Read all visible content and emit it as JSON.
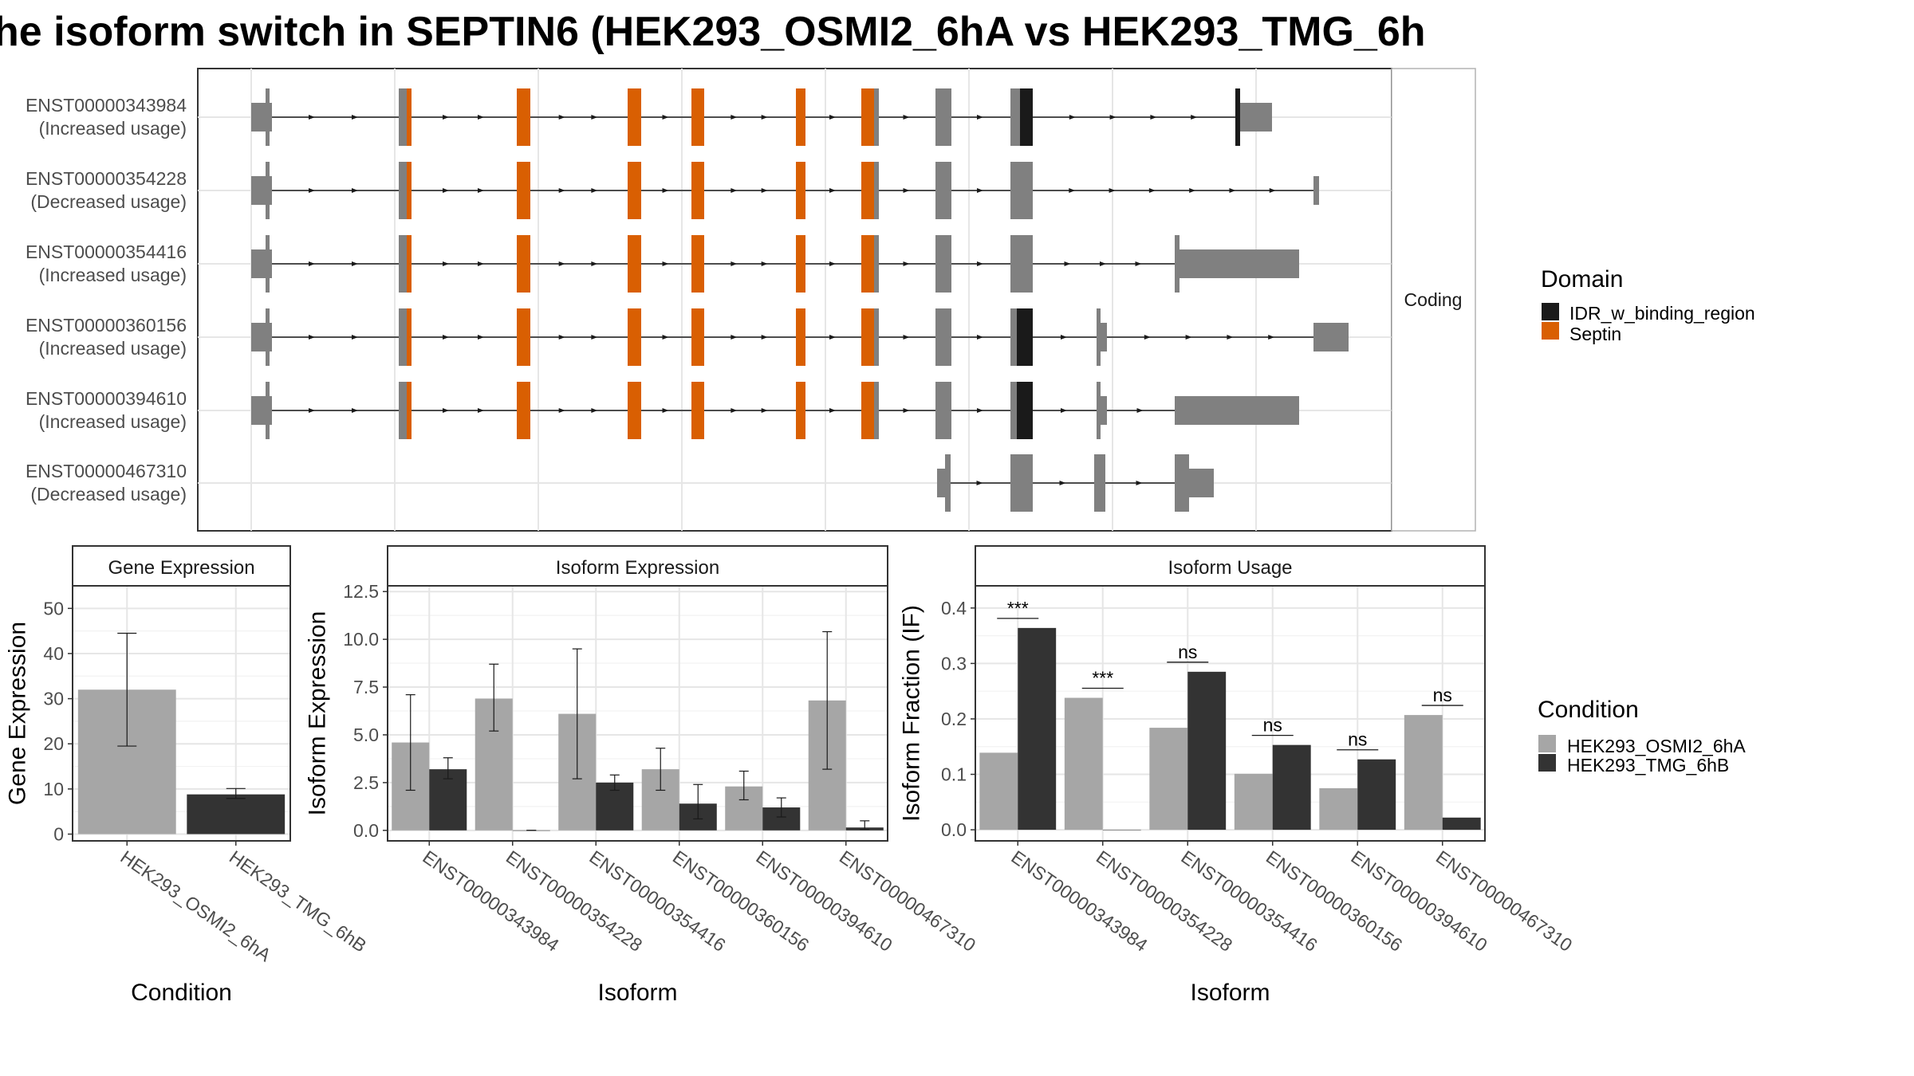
{
  "title": "he isoform switch in SEPTIN6 (HEK293_OSMI2_6hA vs HEK293_TMG_6h",
  "colors": {
    "exon": "#808080",
    "septin": "#D95F02",
    "idr": "#1a1a1a",
    "cond1": "#a6a6a6",
    "cond2": "#333333",
    "grid": "#e6e6e6",
    "strip_bg": "#ffffff",
    "panel_border": "#333333"
  },
  "transcript_panel": {
    "strip_label": "Coding",
    "transcripts": [
      {
        "id": "ENST00000343984",
        "usage": "(Increased usage)"
      },
      {
        "id": "ENST00000354228",
        "usage": "(Decreased usage)"
      },
      {
        "id": "ENST00000354416",
        "usage": "(Increased usage)"
      },
      {
        "id": "ENST00000360156",
        "usage": "(Increased usage)"
      },
      {
        "id": "ENST00000394610",
        "usage": "(Increased usage)"
      },
      {
        "id": "ENST00000467310",
        "usage": "(Decreased usage)"
      }
    ]
  },
  "domain_legend": {
    "title": "Domain",
    "items": [
      {
        "label": "IDR_w_binding_region",
        "color": "#1a1a1a"
      },
      {
        "label": "Septin",
        "color": "#D95F02"
      }
    ]
  },
  "condition_legend": {
    "title": "Condition",
    "items": [
      {
        "label": "HEK293_OSMI2_6hA",
        "color": "#a6a6a6"
      },
      {
        "label": "HEK293_TMG_6hB",
        "color": "#333333"
      }
    ]
  },
  "chart_data": [
    {
      "type": "bar",
      "title": "Gene Expression",
      "xlabel": "Condition",
      "ylabel": "Gene Expression",
      "categories": [
        "HEK293_OSMI2_6hA",
        "HEK293_TMG_6hB"
      ],
      "values": [
        32.0,
        8.8
      ],
      "error_low": [
        19.5,
        7.9
      ],
      "error_high": [
        44.5,
        10.1
      ],
      "ylim": [
        -1.5,
        55
      ],
      "yticks": [
        0,
        10,
        20,
        30,
        40,
        50
      ],
      "ytick_labels": [
        "0",
        "10",
        "20",
        "30",
        "40",
        "50"
      ]
    },
    {
      "type": "bar",
      "title": "Isoform Expression",
      "xlabel": "Isoform",
      "ylabel": "Isoform Expression",
      "categories": [
        "ENST00000343984",
        "ENST00000354228",
        "ENST00000354416",
        "ENST00000360156",
        "ENST00000394610",
        "ENST00000467310"
      ],
      "series": [
        {
          "name": "HEK293_OSMI2_6hA",
          "values": [
            4.6,
            6.9,
            6.1,
            3.2,
            2.3,
            6.8
          ],
          "error_low": [
            2.1,
            5.2,
            2.7,
            2.1,
            1.6,
            3.2
          ],
          "error_high": [
            7.1,
            8.7,
            9.5,
            4.3,
            3.1,
            10.4
          ]
        },
        {
          "name": "HEK293_TMG_6hB",
          "values": [
            3.2,
            0.0,
            2.5,
            1.4,
            1.2,
            0.15
          ],
          "error_low": [
            2.7,
            0.0,
            2.1,
            0.6,
            0.7,
            0.05
          ],
          "error_high": [
            3.8,
            0.0,
            2.9,
            2.4,
            1.7,
            0.5
          ]
        }
      ],
      "ylim": [
        -0.55,
        12.8
      ],
      "yticks": [
        0.0,
        2.5,
        5.0,
        7.5,
        10.0,
        12.5
      ],
      "ytick_labels": [
        "0.0",
        "2.5",
        "5.0",
        "7.5",
        "10.0",
        "12.5"
      ]
    },
    {
      "type": "bar",
      "title": "Isoform Usage",
      "xlabel": "Isoform",
      "ylabel": "Isoform Fraction (IF)",
      "categories": [
        "ENST00000343984",
        "ENST00000354228",
        "ENST00000354416",
        "ENST00000360156",
        "ENST00000394610",
        "ENST00000467310"
      ],
      "series": [
        {
          "name": "HEK293_OSMI2_6hA",
          "values": [
            0.139,
            0.238,
            0.184,
            0.101,
            0.075,
            0.207
          ]
        },
        {
          "name": "HEK293_TMG_6hB",
          "values": [
            0.364,
            0.0,
            0.285,
            0.153,
            0.127,
            0.022
          ]
        }
      ],
      "significance": [
        "***",
        "***",
        "ns",
        "ns",
        "ns",
        "ns"
      ],
      "ylim": [
        -0.02,
        0.44
      ],
      "yticks": [
        0.0,
        0.1,
        0.2,
        0.3,
        0.4
      ],
      "ytick_labels": [
        "0.0",
        "0.1",
        "0.2",
        "0.3",
        "0.4"
      ]
    }
  ]
}
